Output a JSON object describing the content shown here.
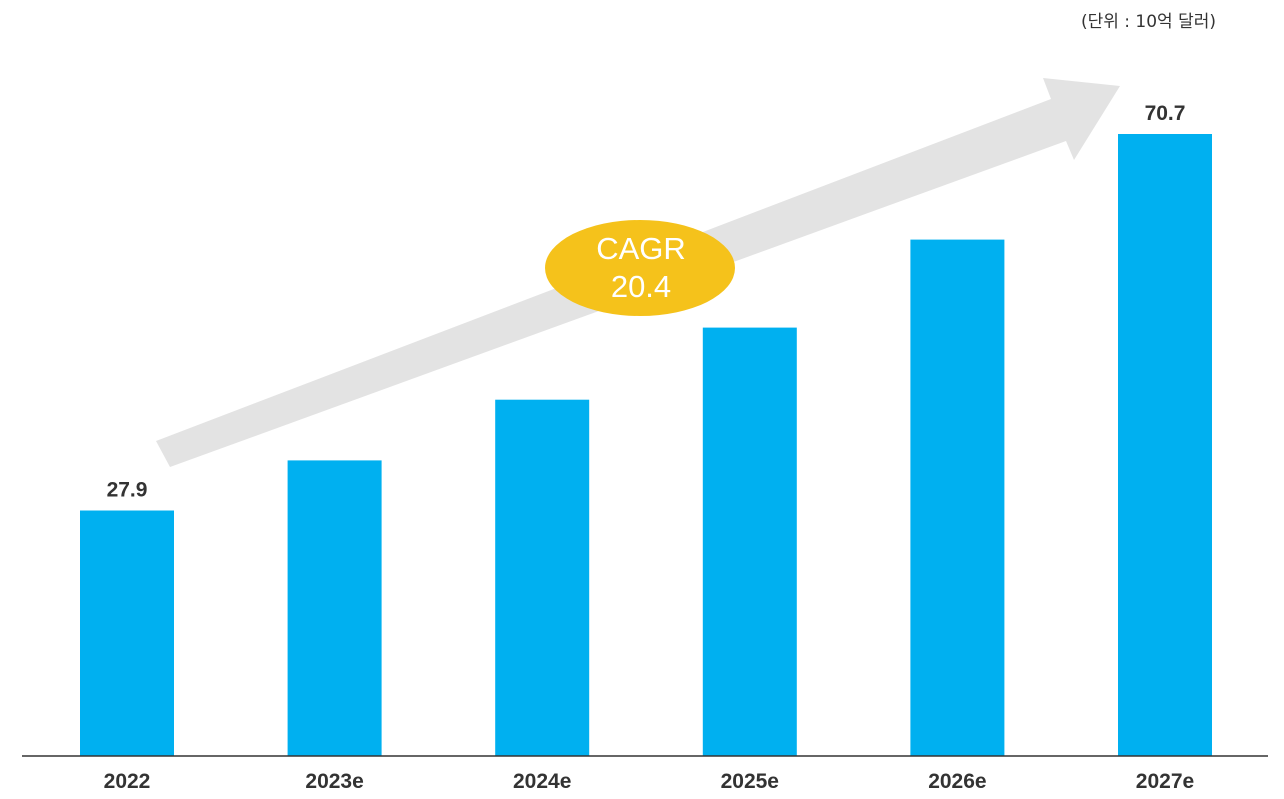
{
  "unit_note": "(단위 : 10억 달러)",
  "annotation": {
    "line1": "CAGR",
    "line2": "20.4"
  },
  "colors": {
    "bar": "#00b0f0",
    "arrow": "#e3e3e3",
    "badge": "#f5c21b",
    "axis": "#333333",
    "text": "#333333"
  },
  "chart_data": {
    "type": "bar",
    "title": "",
    "xlabel": "",
    "ylabel": "",
    "categories": [
      "2022",
      "2023e",
      "2024e",
      "2025e",
      "2026e",
      "2027e"
    ],
    "values": [
      27.9,
      33.6,
      40.5,
      48.7,
      58.7,
      70.7
    ],
    "data_labels": [
      "27.9",
      "",
      "",
      "",
      "",
      "70.7"
    ],
    "ylim": [
      0,
      70.7
    ],
    "grid": false,
    "legend": "none"
  }
}
